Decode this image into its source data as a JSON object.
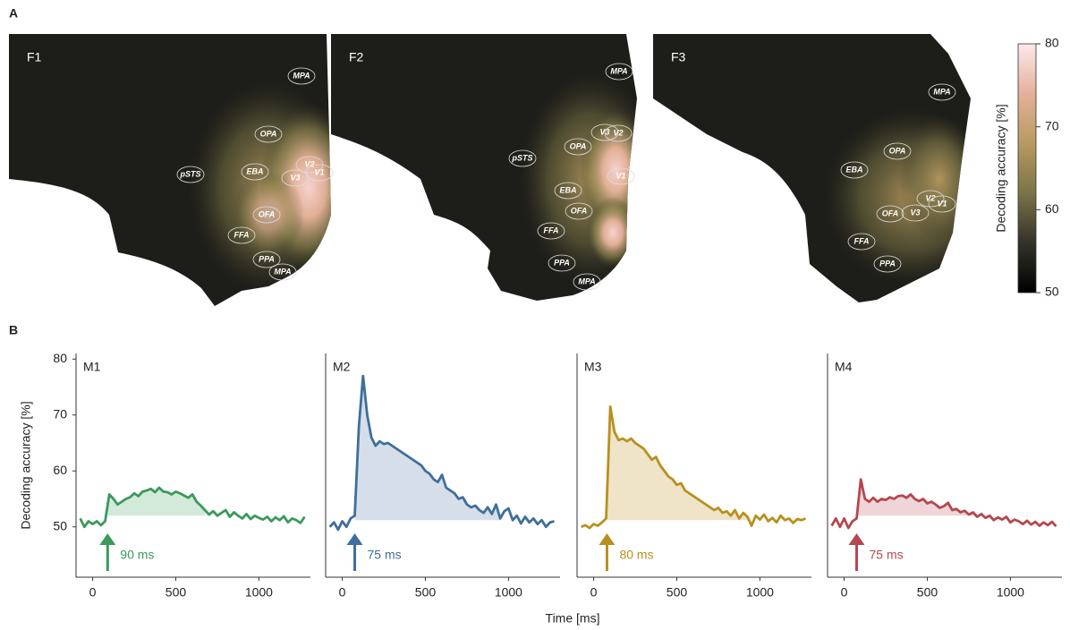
{
  "panel_labels": [
    "A",
    "B"
  ],
  "maps": [
    {
      "label": "F1",
      "rois": [
        "MPA",
        "OPA",
        "pSTS",
        "EBA",
        "V2",
        "V1",
        "V3",
        "OFA",
        "FFA",
        "PPA",
        "MPA"
      ]
    },
    {
      "label": "F2",
      "rois": [
        "MPA",
        "V3",
        "V2",
        "OPA",
        "pSTS",
        "V1",
        "EBA",
        "OFA",
        "FFA",
        "PPA",
        "MPA"
      ]
    },
    {
      "label": "F3",
      "rois": [
        "MPA",
        "OPA",
        "EBA",
        "V2",
        "V1",
        "OFA",
        "V3",
        "FFA",
        "PPA"
      ]
    }
  ],
  "colorbar": {
    "label": "Decoding accuracy [%]",
    "lim": [
      50,
      80
    ],
    "ticks": [
      50,
      60,
      70,
      80
    ]
  },
  "time_axis_label": "Time [ms]",
  "chart_data": [
    {
      "type": "line",
      "title": "M1",
      "color": "#3a9a5c",
      "fill": "#d3eadb",
      "ylabel": "Decoding accuracy [%]",
      "xlim": [
        -100,
        1310
      ],
      "ylim": [
        41,
        81
      ],
      "xticks": [
        0,
        500,
        1000
      ],
      "yticks": [
        50,
        60,
        70,
        80
      ],
      "onset": 90,
      "onset_label": "90 ms",
      "significance_end": 675,
      "shade_floor": 52,
      "x": [
        -75,
        -50,
        -25,
        0,
        25,
        50,
        75,
        100,
        125,
        150,
        175,
        200,
        225,
        250,
        275,
        300,
        325,
        350,
        375,
        400,
        425,
        450,
        475,
        500,
        525,
        550,
        575,
        600,
        625,
        650,
        675,
        700,
        725,
        750,
        775,
        800,
        825,
        850,
        875,
        900,
        925,
        950,
        975,
        1000,
        1025,
        1050,
        1075,
        1100,
        1125,
        1150,
        1175,
        1200,
        1225,
        1250,
        1275
      ],
      "values": [
        51.5,
        50,
        51,
        50.5,
        51,
        50.3,
        51,
        55.8,
        55,
        54,
        54.5,
        55,
        55.3,
        56,
        55.5,
        56.3,
        56.5,
        56.8,
        56.2,
        57,
        56.3,
        56.2,
        55.8,
        56.3,
        56,
        55.6,
        55.2,
        55.8,
        54.5,
        53.8,
        53,
        52.2,
        52.8,
        52,
        52.5,
        53,
        51.8,
        52.6,
        52,
        51.5,
        52.3,
        51.4,
        52,
        51.6,
        51.3,
        51.8,
        51,
        51.7,
        51.2,
        51.9,
        50.8,
        51.5,
        51.2,
        50.7,
        51.8
      ]
    },
    {
      "type": "line",
      "title": "M2",
      "color": "#3f6f9c",
      "fill": "#d6dfe9",
      "xlim": [
        -100,
        1310
      ],
      "ylim": [
        41,
        81
      ],
      "xticks": [
        0,
        500,
        1000
      ],
      "onset": 75,
      "onset_label": "75 ms",
      "significance_end": 960,
      "shade_floor": 51.2,
      "x": [
        -75,
        -50,
        -25,
        0,
        25,
        50,
        75,
        100,
        125,
        150,
        175,
        200,
        225,
        250,
        275,
        300,
        325,
        350,
        375,
        400,
        425,
        450,
        475,
        500,
        525,
        550,
        575,
        600,
        625,
        650,
        675,
        700,
        725,
        750,
        775,
        800,
        825,
        850,
        875,
        900,
        925,
        950,
        975,
        1000,
        1025,
        1050,
        1075,
        1100,
        1125,
        1150,
        1175,
        1200,
        1225,
        1250,
        1275
      ],
      "values": [
        50,
        50.8,
        49.5,
        51,
        50,
        51.5,
        52,
        68,
        77,
        70,
        66,
        64.5,
        65.3,
        64.8,
        65,
        64.5,
        64,
        63.5,
        63,
        62.5,
        62,
        61.5,
        61,
        60,
        59.5,
        58.5,
        58,
        59.3,
        57,
        56.5,
        56,
        55,
        55.3,
        54,
        53.5,
        53.8,
        53,
        52.5,
        53.5,
        52.3,
        54,
        51.5,
        52.8,
        53.3,
        51.2,
        52,
        50.6,
        51.8,
        50.8,
        51.5,
        50.5,
        51.2,
        50,
        50.8,
        51
      ]
    },
    {
      "type": "line",
      "title": "M3",
      "color": "#b8901f",
      "fill": "#efe4c8",
      "xlim": [
        -100,
        1310
      ],
      "ylim": [
        41,
        81
      ],
      "xticks": [
        0,
        500,
        1000
      ],
      "onset": 80,
      "onset_label": "80 ms",
      "significance_end": 940,
      "shade_floor": 51.2,
      "x": [
        -75,
        -50,
        -25,
        0,
        25,
        50,
        75,
        100,
        125,
        150,
        175,
        200,
        225,
        250,
        275,
        300,
        325,
        350,
        375,
        400,
        425,
        450,
        475,
        500,
        525,
        550,
        575,
        600,
        625,
        650,
        675,
        700,
        725,
        750,
        775,
        800,
        825,
        850,
        875,
        900,
        925,
        950,
        975,
        1000,
        1025,
        1050,
        1075,
        1100,
        1125,
        1150,
        1175,
        1200,
        1225,
        1250,
        1275
      ],
      "values": [
        50,
        50.3,
        49.8,
        50.5,
        50.2,
        50.8,
        51.5,
        71.5,
        67,
        65.5,
        65.8,
        65.3,
        65.8,
        65,
        64.5,
        64,
        63,
        62,
        62.5,
        61,
        60,
        59,
        58.5,
        57.5,
        57.8,
        56.5,
        56,
        55.5,
        55,
        54.5,
        54,
        53.5,
        53,
        53.4,
        52.5,
        52.8,
        52,
        53,
        51.5,
        52.5,
        51.8,
        50.2,
        52,
        51.3,
        52.2,
        51,
        51.6,
        50.8,
        52,
        51.2,
        51.5,
        50.7,
        51.4,
        51.2,
        51.5
      ]
    },
    {
      "type": "line",
      "title": "M4",
      "color": "#b5474f",
      "fill": "#f0d5d8",
      "xlim": [
        -100,
        1310
      ],
      "ylim": [
        41,
        81
      ],
      "xticks": [
        0,
        500,
        1000
      ],
      "onset": 75,
      "onset_label": "75 ms",
      "significance_end": 800,
      "shade_floor": 52,
      "x": [
        -75,
        -50,
        -25,
        0,
        25,
        50,
        75,
        100,
        125,
        150,
        175,
        200,
        225,
        250,
        275,
        300,
        325,
        350,
        375,
        400,
        425,
        450,
        475,
        500,
        525,
        550,
        575,
        600,
        625,
        650,
        675,
        700,
        725,
        750,
        775,
        800,
        825,
        850,
        875,
        900,
        925,
        950,
        975,
        1000,
        1025,
        1050,
        1075,
        1100,
        1125,
        1150,
        1175,
        1200,
        1225,
        1250,
        1275
      ],
      "values": [
        50.2,
        51.5,
        50,
        51.5,
        49.8,
        51,
        51.5,
        58.5,
        55,
        54.5,
        55.2,
        54.5,
        55,
        54.8,
        55.3,
        55,
        55.5,
        55.6,
        55.2,
        55.8,
        55,
        54.6,
        55,
        54.2,
        54.5,
        54,
        53.4,
        53.7,
        54.3,
        53,
        53.2,
        52.6,
        52.9,
        52.2,
        52.6,
        51.8,
        52.3,
        51.6,
        52,
        51.2,
        51.7,
        51.3,
        51.8,
        50.8,
        51.3,
        51,
        50.5,
        51.1,
        50.4,
        50.9,
        50.2,
        50.8,
        50.3,
        50.9,
        50.1
      ]
    }
  ]
}
